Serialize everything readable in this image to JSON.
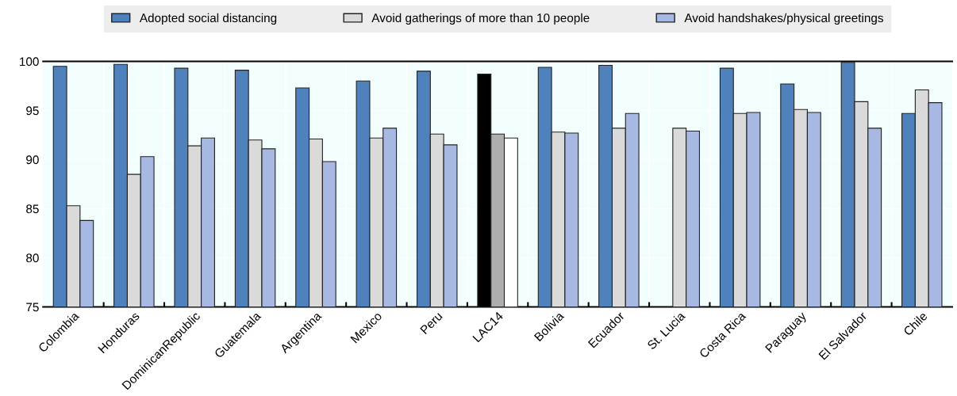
{
  "chart_data": {
    "type": "bar",
    "categories": [
      "Colombia",
      "Honduras",
      "DominicanRepublic",
      "Guatemala",
      "Argentina",
      "Mexico",
      "Peru",
      "LAC14",
      "Bolivia",
      "Ecuador",
      "St. Lucia",
      "Costa Rica",
      "Paraguay",
      "El Salvador",
      "Chile"
    ],
    "series": [
      {
        "name": "Adopted social distancing",
        "color": "#4f81bd",
        "colors": [
          "#4f81bd",
          "#4f81bd",
          "#4f81bd",
          "#4f81bd",
          "#4f81bd",
          "#4f81bd",
          "#4f81bd",
          "#000000",
          "#4f81bd",
          "#4f81bd",
          "#4f81bd",
          "#4f81bd",
          "#4f81bd",
          "#4f81bd",
          "#4f81bd"
        ],
        "values": [
          99.5,
          99.7,
          99.3,
          99.1,
          97.3,
          98.0,
          99.0,
          98.7,
          99.4,
          99.6,
          null,
          99.3,
          97.7,
          99.9,
          94.7
        ]
      },
      {
        "name": "Avoid gatherings of more than 10 people",
        "color": "#dadada",
        "colors": [
          "#dadada",
          "#dadada",
          "#dadada",
          "#dadada",
          "#dadada",
          "#dadada",
          "#dadada",
          "#aeaeae",
          "#dadada",
          "#dadada",
          "#dadada",
          "#dadada",
          "#dadada",
          "#dadada",
          "#dadada"
        ],
        "values": [
          85.3,
          88.5,
          91.4,
          92.0,
          92.1,
          92.2,
          92.6,
          92.6,
          92.8,
          93.2,
          93.2,
          94.7,
          95.1,
          95.9,
          97.1
        ]
      },
      {
        "name": "Avoid handshakes/physical greetings",
        "color": "#a7b9e3",
        "colors": [
          "#a7b9e3",
          "#a7b9e3",
          "#a7b9e3",
          "#a7b9e3",
          "#a7b9e3",
          "#a7b9e3",
          "#a7b9e3",
          "#ffffff",
          "#a7b9e3",
          "#a7b9e3",
          "#a7b9e3",
          "#a7b9e3",
          "#a7b9e3",
          "#a7b9e3",
          "#a7b9e3"
        ],
        "values": [
          83.8,
          90.3,
          92.2,
          91.1,
          89.8,
          93.2,
          91.5,
          92.2,
          92.7,
          94.7,
          92.9,
          94.8,
          94.8,
          93.2,
          95.8
        ]
      }
    ],
    "ylim": [
      75,
      100
    ],
    "yticks": [
      75,
      80,
      85,
      90,
      95,
      100
    ],
    "grid": true,
    "legend": "top"
  }
}
